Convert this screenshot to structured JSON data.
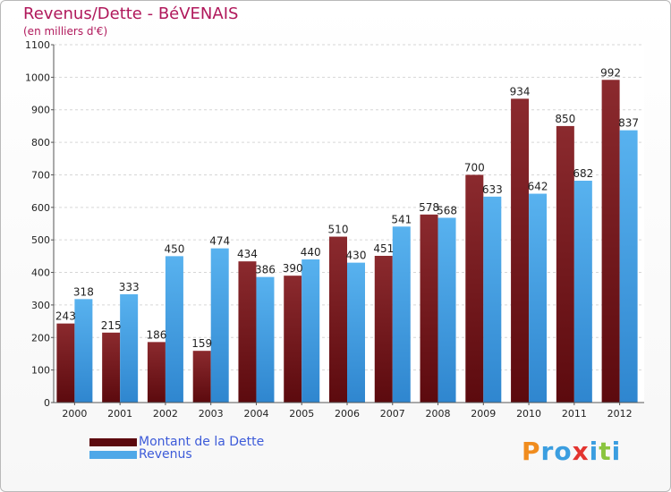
{
  "title": "Revenus/Dette - BéVENAIS",
  "subtitle": "(en milliers d'€)",
  "logo": {
    "letters": [
      "P",
      "r",
      "o",
      "x",
      "i",
      "t",
      "i"
    ],
    "colors": [
      "#f08c1e",
      "#3b9ee0",
      "#3b9ee0",
      "#e3342f",
      "#3b9ee0",
      "#8bc53f",
      "#3b9ee0"
    ]
  },
  "chart_data": {
    "type": "bar",
    "categories": [
      "2000",
      "2001",
      "2002",
      "2003",
      "2004",
      "2005",
      "2006",
      "2007",
      "2008",
      "2009",
      "2010",
      "2011",
      "2012"
    ],
    "series": [
      {
        "name": "Montant de la Dette",
        "color": "#7a1a1f",
        "values": [
          243,
          215,
          186,
          159,
          434,
          390,
          510,
          451,
          578,
          700,
          934,
          850,
          992
        ]
      },
      {
        "name": "Revenus",
        "color": "#4fa8e8",
        "values": [
          318,
          333,
          450,
          474,
          386,
          440,
          430,
          541,
          568,
          633,
          642,
          682,
          837
        ]
      }
    ],
    "ylim": [
      0,
      1100
    ],
    "yticks": [
      0,
      100,
      200,
      300,
      400,
      500,
      600,
      700,
      800,
      900,
      1000,
      1100
    ],
    "grid": true,
    "legend_position": "bottom-left"
  }
}
